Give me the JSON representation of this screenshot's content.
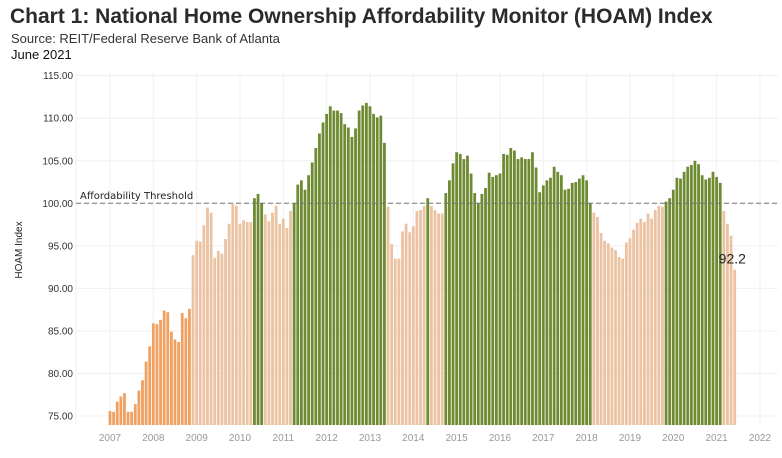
{
  "title": "Chart 1: National Home Ownership Affordability Monitor (HOAM) Index",
  "source": "Source: REIT/Federal Reserve Bank of Atlanta",
  "date": "June 2021",
  "colors": {
    "green": "#6e8b32",
    "peach": "#ebc3a3",
    "orange": "#f0a060",
    "threshold": "#777777"
  },
  "chart_data": {
    "type": "bar",
    "title": "Chart 1: National Home Ownership Affordability Monitor (HOAM) Index",
    "xlabel": "",
    "ylabel": "HOAM Index",
    "start": "2007-01",
    "frequency": "monthly",
    "ylim": [
      73.9,
      116
    ],
    "yticks": [
      "75.00",
      "80.00",
      "85.00",
      "90.00",
      "95.00",
      "100.00",
      "105.00",
      "110.00",
      "115.00"
    ],
    "xticks": [
      "2007",
      "2008",
      "2009",
      "2010",
      "2011",
      "2012",
      "2013",
      "2014",
      "2015",
      "2016",
      "2017",
      "2018",
      "2019",
      "2020",
      "2021",
      "2022"
    ],
    "threshold": {
      "value": 100,
      "label": "Affordability Threshold"
    },
    "last_label": "92.2",
    "values": [
      75.6,
      75.5,
      76.7,
      77.3,
      77.7,
      75.5,
      75.5,
      76.4,
      78.0,
      79.2,
      81.4,
      83.2,
      85.9,
      85.8,
      86.3,
      87.4,
      87.2,
      84.9,
      84.0,
      83.7,
      87.1,
      86.5,
      87.6,
      93.9,
      95.6,
      95.5,
      97.4,
      99.5,
      98.9,
      93.6,
      94.4,
      94.1,
      95.8,
      97.6,
      99.9,
      99.7,
      97.6,
      98.0,
      97.8,
      97.8,
      100.6,
      101.1,
      100.0,
      98.7,
      97.9,
      98.9,
      99.7,
      97.6,
      98.2,
      97.1,
      99.1,
      100.0,
      102.2,
      102.7,
      101.6,
      103.3,
      104.8,
      106.5,
      108.2,
      109.5,
      110.5,
      111.4,
      110.9,
      110.9,
      110.6,
      109.3,
      108.9,
      107.8,
      108.8,
      110.9,
      111.5,
      111.8,
      111.4,
      110.5,
      110.1,
      110.3,
      107.1,
      99.6,
      95.2,
      93.5,
      93.5,
      96.7,
      97.6,
      96.6,
      97.3,
      99.1,
      99.2,
      99.7,
      100.6,
      99.7,
      99.2,
      98.8,
      98.8,
      101.2,
      102.7,
      104.7,
      106.0,
      105.8,
      105.2,
      105.6,
      103.5,
      101.2,
      100.0,
      101.1,
      101.8,
      103.6,
      103.1,
      103.3,
      103.5,
      105.8,
      105.7,
      106.5,
      106.2,
      105.2,
      105.4,
      105.2,
      105.2,
      106.0,
      104.2,
      101.3,
      102.1,
      102.7,
      103.0,
      104.3,
      103.7,
      103.3,
      101.6,
      101.7,
      102.4,
      102.5,
      102.9,
      103.3,
      102.7,
      100.0,
      98.9,
      98.4,
      96.5,
      95.6,
      95.3,
      94.8,
      94.5,
      93.7,
      93.5,
      95.4,
      95.9,
      96.9,
      97.7,
      98.2,
      97.8,
      98.8,
      98.2,
      99.2,
      99.7,
      99.6,
      100.2,
      100.6,
      101.6,
      103.0,
      102.9,
      103.7,
      104.3,
      104.5,
      105.0,
      104.6,
      103.3,
      102.8,
      103.0,
      103.7,
      103.1,
      102.4,
      99.1,
      97.6,
      96.2,
      92.2
    ]
  }
}
